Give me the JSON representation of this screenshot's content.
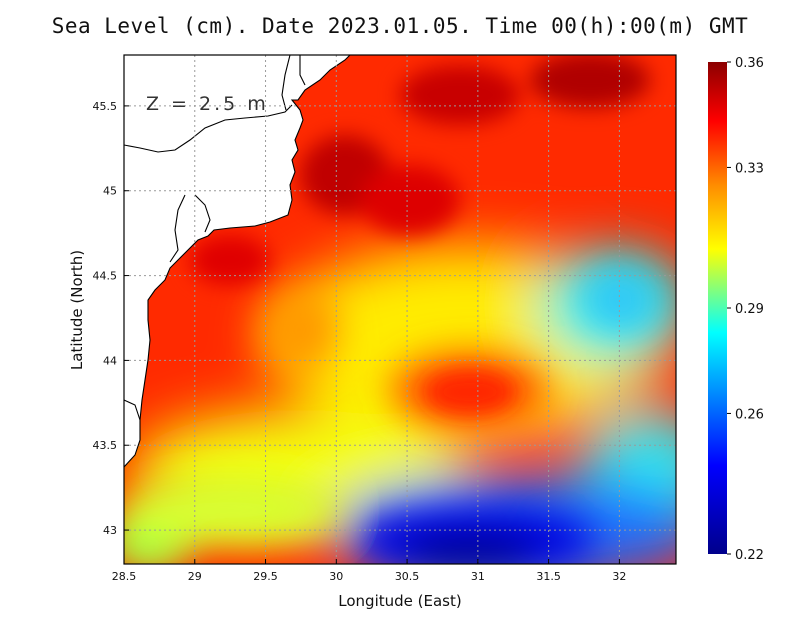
{
  "title": "Sea Level (cm). Date 2023.01.05. Time 00(h):00(m) GMT",
  "depth_label": "Z = 2.5 m",
  "chart_data": {
    "type": "heatmap",
    "title": "Sea Level (cm). Date 2023.01.05. Time 00(h):00(m) GMT",
    "xlabel": "Longitude (East)",
    "ylabel": "Latitude (North)",
    "xlim": [
      28.5,
      32.4
    ],
    "ylim": [
      42.8,
      45.8
    ],
    "xticks": [
      28.5,
      29,
      29.5,
      30,
      30.5,
      31,
      31.5,
      32
    ],
    "xtick_labels": [
      "28.5",
      "29",
      "29.5",
      "30",
      "30.5",
      "31",
      "31.5",
      "32"
    ],
    "yticks": [
      43,
      43.5,
      44,
      44.5,
      45,
      45.5
    ],
    "ytick_labels": [
      "43",
      "43.5",
      "44",
      "44.5",
      "45",
      "45.5"
    ],
    "grid": true,
    "colorbar": {
      "min": 0.22,
      "max": 0.36,
      "ticks": [
        0.36,
        0.33,
        0.29,
        0.26,
        0.22
      ],
      "tick_labels": [
        "0.36",
        "0.33",
        "0.29",
        "0.26",
        "0.22"
      ],
      "colors": [
        "#00008b",
        "#0000ff",
        "#00ffff",
        "#ffff00",
        "#ff8c00",
        "#ff0000",
        "#8b0000"
      ]
    },
    "features": [
      {
        "name": "maximum",
        "lon": 30.1,
        "lat": 45.05,
        "value": 0.35
      },
      {
        "name": "maximum",
        "lon": 30.9,
        "lat": 45.6,
        "value": 0.35
      },
      {
        "name": "maximum",
        "lon": 31.9,
        "lat": 45.7,
        "value": 0.35
      },
      {
        "name": "local maximum",
        "lon": 30.95,
        "lat": 43.8,
        "value": 0.33
      },
      {
        "name": "minimum",
        "lon": 31.0,
        "lat": 42.9,
        "value": 0.22
      },
      {
        "name": "minimum",
        "lon": 32.0,
        "lat": 44.4,
        "value": 0.27
      },
      {
        "name": "green band",
        "lon": 28.65,
        "lat": 42.95,
        "value": 0.3
      }
    ]
  }
}
